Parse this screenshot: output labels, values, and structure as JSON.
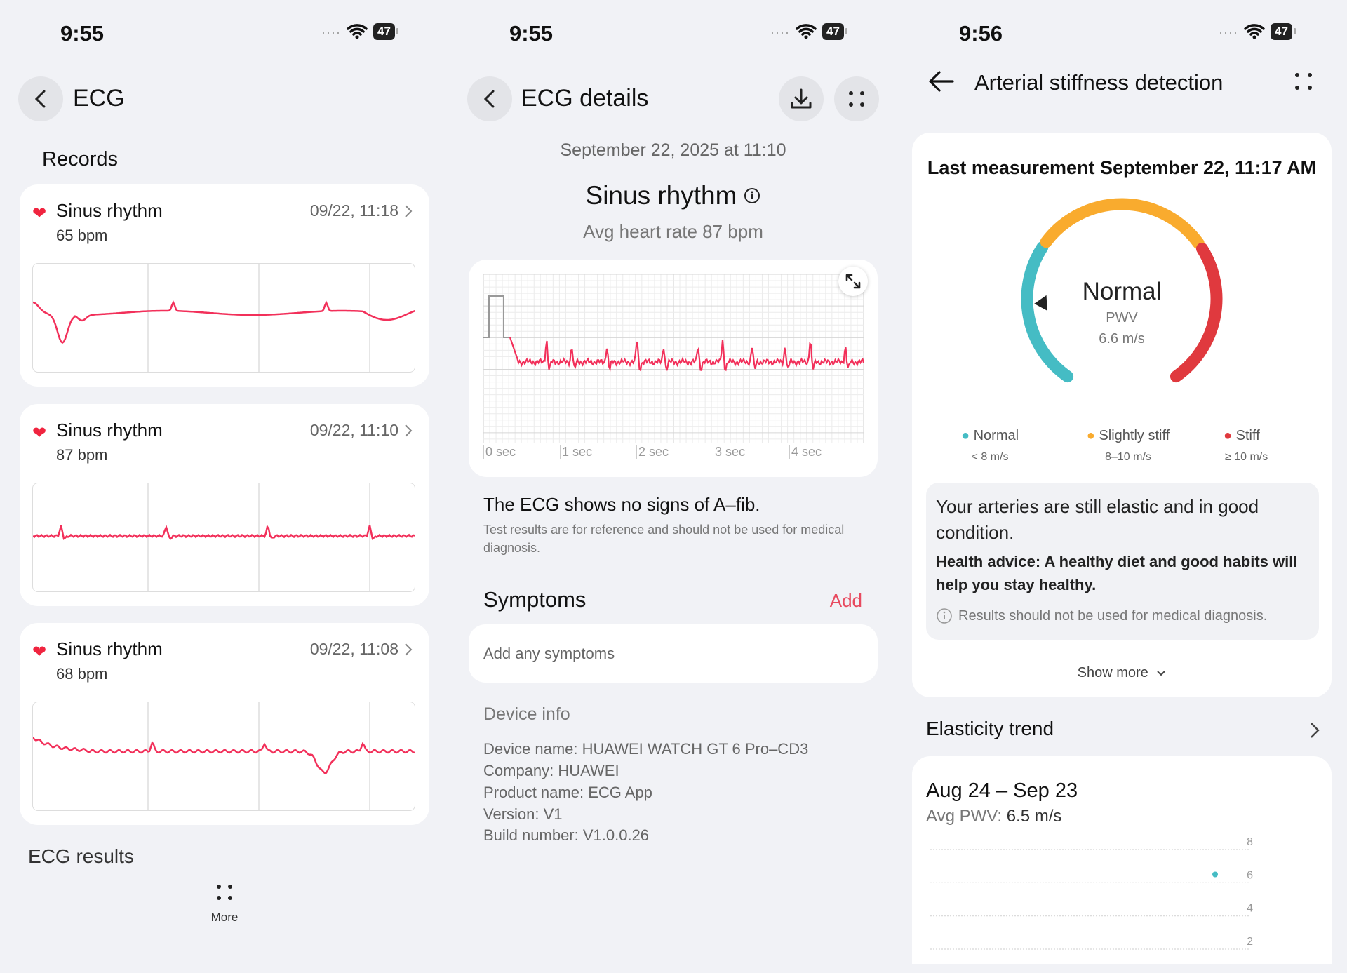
{
  "colors": {
    "heart": "#f0243f",
    "trace": "#f2305a",
    "accent": "#e84a5f",
    "normal": "#45bcc4",
    "slightly_stiff": "#f9ab2e",
    "stiff": "#e0393e"
  },
  "screens": [
    {
      "time": "9:55",
      "battery": "47"
    },
    {
      "time": "9:55",
      "battery": "47"
    },
    {
      "time": "9:56",
      "battery": "47"
    }
  ],
  "ecg_list": {
    "title": "ECG",
    "records_label": "Records",
    "records": [
      {
        "label": "Sinus rhythm",
        "bpm": "65 bpm",
        "date": "09/22, 11:18"
      },
      {
        "label": "Sinus rhythm",
        "bpm": "87 bpm",
        "date": "09/22, 11:10"
      },
      {
        "label": "Sinus rhythm",
        "bpm": "68 bpm",
        "date": "09/22, 11:08"
      }
    ],
    "results_label": "ECG results",
    "more_label": "More"
  },
  "ecg_details": {
    "title": "ECG details",
    "date": "September 22, 2025 at 11:10",
    "result": "Sinus rhythm",
    "avg_hr": "Avg heart rate 87 bpm",
    "x_ticks": [
      "0 sec",
      "1 sec",
      "2 sec",
      "3 sec",
      "4 sec"
    ],
    "summary": "The ECG shows no signs of A–fib.",
    "disclaimer": "Test results are for reference and should not be used for medical diagnosis.",
    "symptoms_title": "Symptoms",
    "add_label": "Add",
    "symptoms_placeholder": "Add any symptoms",
    "device_info_title": "Device info",
    "device_info": [
      "Device name: HUAWEI WATCH GT 6 Pro–CD3",
      "Company: HUAWEI",
      "Product name: ECG App",
      "Version: V1",
      "Build number: V1.0.0.26"
    ]
  },
  "arterial": {
    "title": "Arterial stiffness detection",
    "last_measurement": "Last measurement September 22, 11:17 AM",
    "status": "Normal",
    "metric": "PWV",
    "value": "6.6 m/s",
    "pwv_value": 6.6,
    "legend": [
      {
        "label": "Normal",
        "range": "< 8 m/s"
      },
      {
        "label": "Slightly stiff",
        "range": "8–10 m/s"
      },
      {
        "label": "Stiff",
        "range": "≥ 10 m/s"
      }
    ],
    "message": "Your arteries are still elastic and in good condition.",
    "advice": "Health advice: A healthy diet and good habits will help you stay healthy.",
    "note": "Results should not be used for medical diagnosis.",
    "show_more": "Show more",
    "trend_title": "Elasticity trend",
    "range": "Aug 24 – Sep 23",
    "avg_label": "Avg PWV: ",
    "avg_value": "6.5 m/s",
    "chart_data": {
      "type": "scatter",
      "y_ticks": [
        "8",
        "6",
        "4",
        "2"
      ],
      "ylim": [
        2,
        8
      ],
      "points": [
        {
          "x": "Sep 22",
          "y": 6.5
        }
      ]
    }
  }
}
